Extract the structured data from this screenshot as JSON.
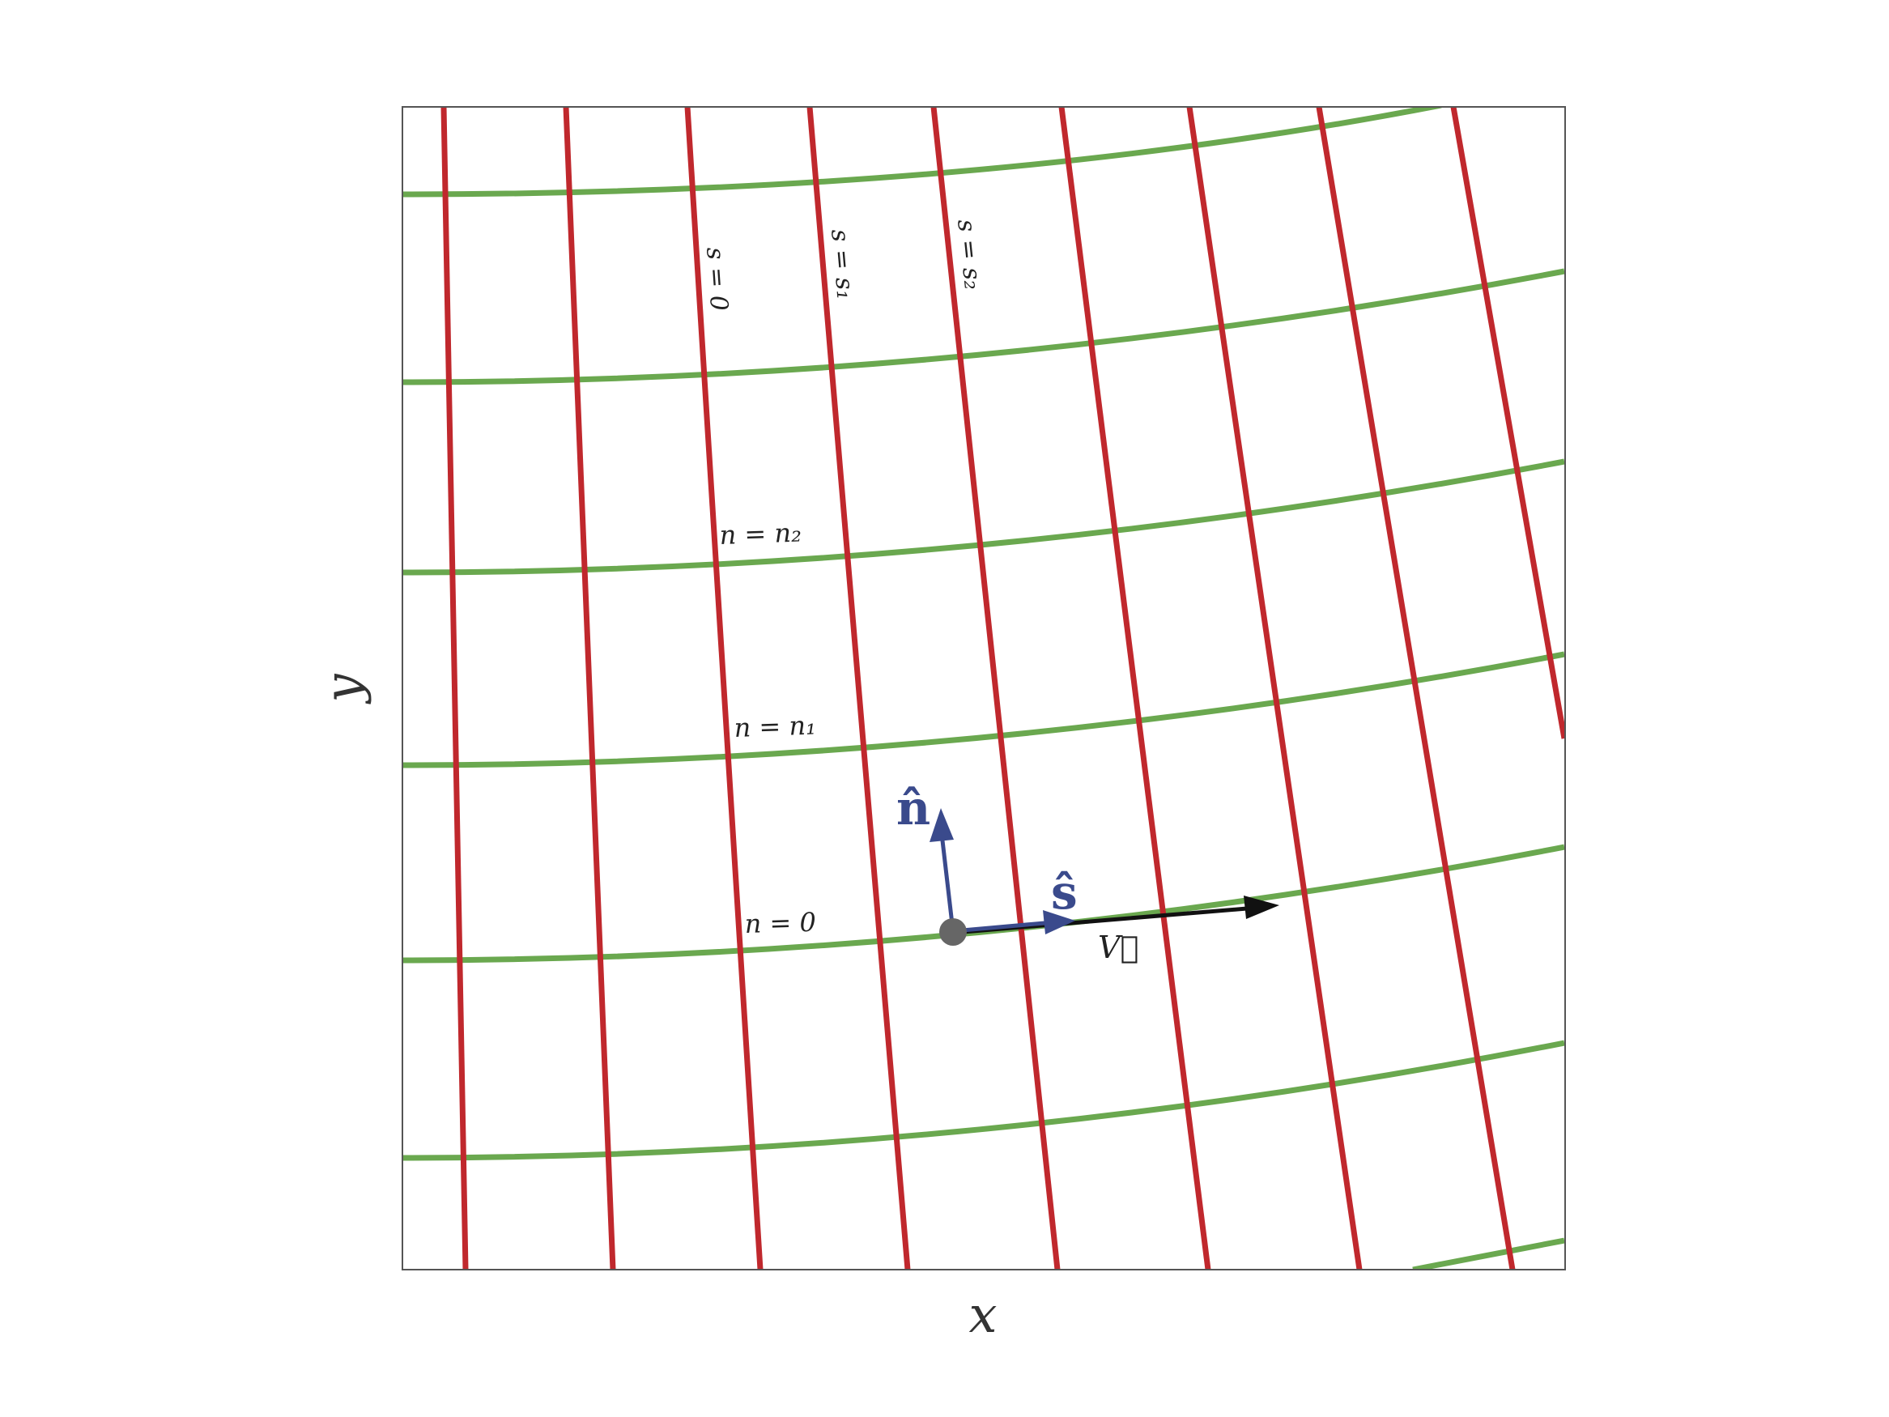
{
  "diagram": {
    "axes": {
      "x_label": "x",
      "y_label": "y"
    },
    "colors": {
      "n_curves": "#6aa84f",
      "s_curves": "#c0282d",
      "unit_vectors": "#3a4a8c",
      "velocity": "#111111",
      "origin_point": "#666666",
      "frame": "#555555"
    },
    "labels": {
      "n0": "n = 0",
      "n1": "n = n₁",
      "n2": "n = n₂",
      "s0": "s = 0",
      "s1": "s = s₁",
      "s2": "s = s₂"
    },
    "vectors": {
      "n_hat": "n̂",
      "s_hat": "ŝ",
      "velocity": "V⃗"
    }
  }
}
